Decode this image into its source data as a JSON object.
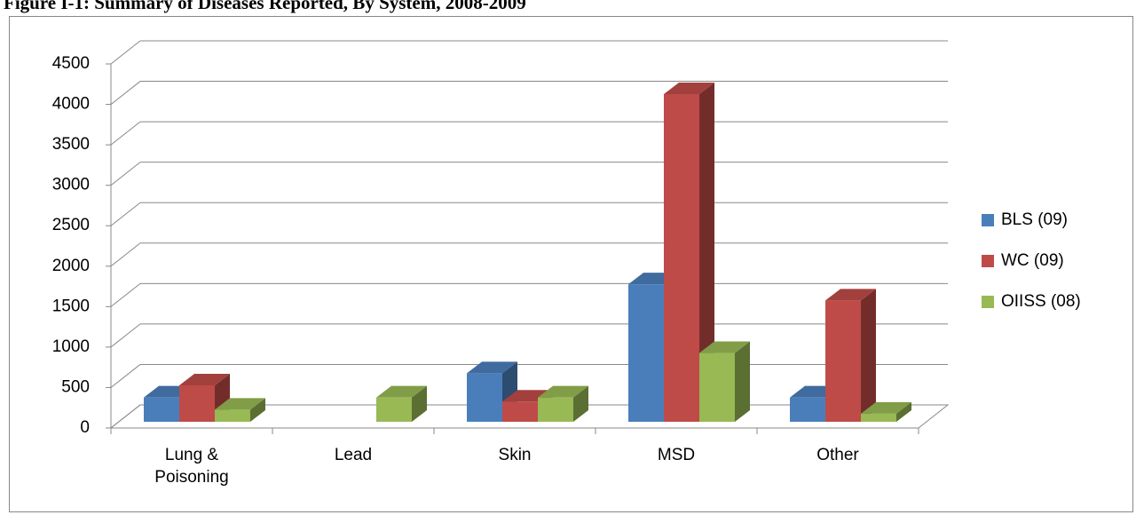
{
  "chart_data": {
    "type": "bar3d",
    "title": "Figure I-1: Summary of Diseases Reported, By System, 2008-2009",
    "categories": [
      "Lung & Poisoning",
      "Lead",
      "Skin",
      "MSD",
      "Other"
    ],
    "series": [
      {
        "name": "BLS (09)",
        "color": "#4a7ebb",
        "values": [
          300,
          0,
          600,
          1700,
          300
        ]
      },
      {
        "name": "WC (09)",
        "color": "#be4b48",
        "values": [
          450,
          0,
          250,
          4050,
          1500
        ]
      },
      {
        "name": "OIISS (08)",
        "color": "#98b954",
        "values": [
          150,
          300,
          300,
          850,
          100
        ]
      }
    ],
    "ylim": [
      0,
      4500
    ],
    "yticks": [
      0,
      500,
      1000,
      1500,
      2000,
      2500,
      3000,
      3500,
      4000,
      4500
    ],
    "grid": true,
    "legend": "right"
  }
}
